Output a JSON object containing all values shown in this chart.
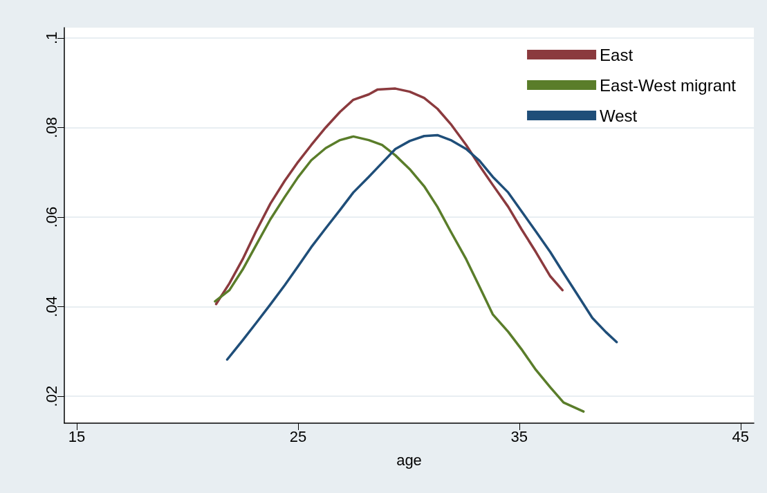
{
  "chart_data": {
    "type": "line",
    "xlabel": "age",
    "xlim": [
      14.44,
      45.6
    ],
    "xticks": [
      15,
      25,
      35,
      45
    ],
    "ylim": [
      0.014,
      0.1023
    ],
    "yticks": [
      {
        "value": 0.02,
        "label": ".02"
      },
      {
        "value": 0.04,
        "label": ".04"
      },
      {
        "value": 0.06,
        "label": ".06"
      },
      {
        "value": 0.08,
        "label": ".08"
      },
      {
        "value": 0.1,
        "label": ".1"
      }
    ],
    "grid": "y",
    "legend": "top right",
    "marker": "none",
    "line_style": "solid",
    "series": [
      {
        "name": "East",
        "color": "#8b3a3e",
        "x": [
          21.3,
          21.9,
          22.5,
          23.1,
          23.75,
          24.4,
          25,
          25.6,
          26.25,
          26.9,
          27.5,
          28.2,
          28.6,
          29.4,
          30.05,
          30.7,
          31.3,
          31.9,
          32.6,
          33.2,
          33.8,
          34.5,
          35.1,
          35.75,
          36.4,
          36.95
        ],
        "values": [
          0.0406,
          0.0452,
          0.0506,
          0.0568,
          0.063,
          0.0681,
          0.0723,
          0.0761,
          0.08,
          0.0835,
          0.0862,
          0.0874,
          0.0885,
          0.0887,
          0.088,
          0.0866,
          0.0842,
          0.0808,
          0.0761,
          0.0715,
          0.0672,
          0.0623,
          0.0573,
          0.0522,
          0.0468,
          0.0437
        ]
      },
      {
        "name": "East-West migrant",
        "color": "#5a7d2a",
        "x": [
          21.25,
          21.9,
          22.5,
          23.1,
          23.75,
          24.4,
          25,
          25.6,
          26.25,
          26.9,
          27.5,
          28.2,
          28.8,
          29.4,
          30.05,
          30.7,
          31.3,
          31.9,
          32.6,
          33.2,
          33.8,
          34.5,
          35.1,
          35.75,
          36.4,
          37,
          37.9
        ],
        "values": [
          0.0412,
          0.0437,
          0.0483,
          0.0537,
          0.0595,
          0.0645,
          0.0689,
          0.0727,
          0.0754,
          0.0772,
          0.078,
          0.0772,
          0.0761,
          0.0738,
          0.0707,
          0.0669,
          0.0623,
          0.0568,
          0.0506,
          0.0445,
          0.0383,
          0.0344,
          0.0305,
          0.0259,
          0.022,
          0.0186,
          0.0166
        ]
      },
      {
        "name": "West",
        "color": "#1f4e79",
        "x": [
          21.8,
          22.5,
          23.1,
          23.75,
          24.4,
          25,
          25.6,
          26.25,
          26.9,
          27.5,
          28.2,
          28.8,
          29.4,
          30.05,
          30.7,
          31.3,
          31.9,
          32.6,
          33.2,
          33.8,
          34.5,
          35.1,
          35.75,
          36.4,
          37,
          37.6,
          38.3,
          38.9,
          39.4
        ],
        "values": [
          0.0282,
          0.0325,
          0.0363,
          0.0405,
          0.0448,
          0.049,
          0.0533,
          0.0575,
          0.0616,
          0.0655,
          0.069,
          0.0721,
          0.0752,
          0.077,
          0.0781,
          0.0783,
          0.0772,
          0.0752,
          0.0726,
          0.069,
          0.0655,
          0.0613,
          0.0568,
          0.0522,
          0.0475,
          0.0429,
          0.0375,
          0.0344,
          0.0321
        ]
      }
    ]
  }
}
